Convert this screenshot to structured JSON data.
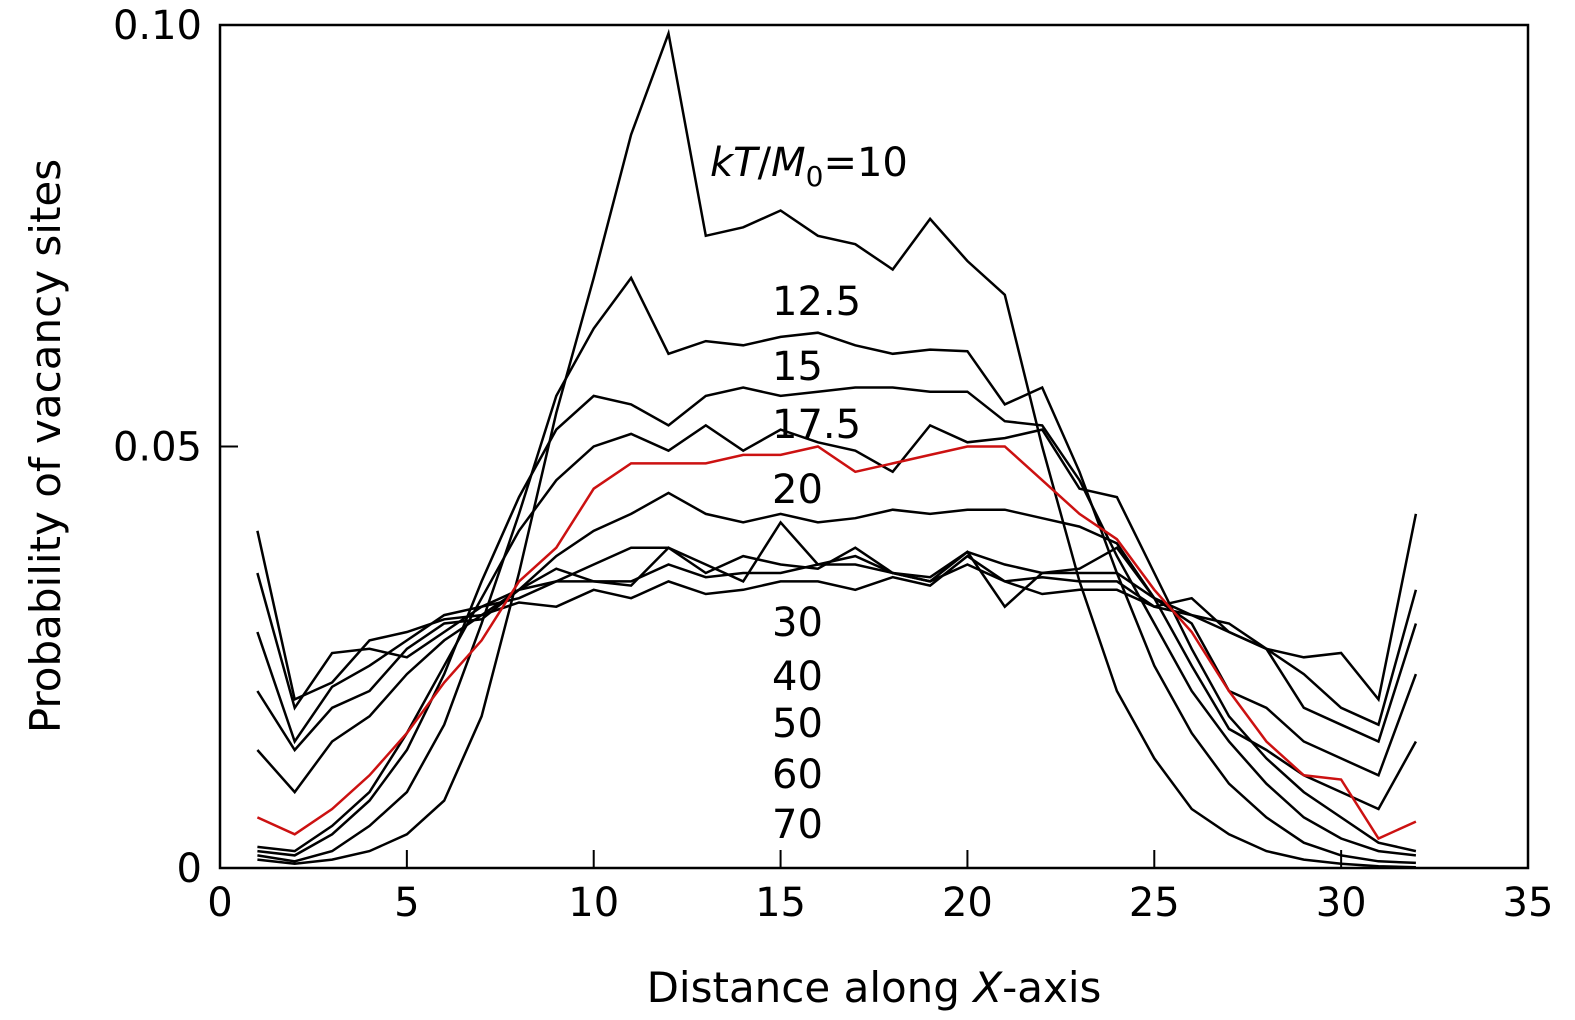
{
  "chart_data": {
    "type": "line",
    "title": "",
    "xlabel_pre": "Distance along ",
    "xlabel_var": "X",
    "xlabel_post": "-axis",
    "ylabel": "Probability of vacancy sites",
    "xlim": [
      0,
      35
    ],
    "ylim": [
      0,
      0.1
    ],
    "x_ticks": [
      0,
      5,
      10,
      15,
      20,
      25,
      30,
      35
    ],
    "y_ticks": [
      0,
      0.05,
      0.1
    ],
    "x_tick_labels": [
      "0",
      "5",
      "10",
      "15",
      "20",
      "25",
      "30",
      "35"
    ],
    "y_tick_labels": [
      "0",
      "0.05",
      "0.10"
    ],
    "grid": false,
    "x": [
      1,
      2,
      3,
      4,
      5,
      6,
      7,
      8,
      9,
      10,
      11,
      12,
      13,
      14,
      15,
      16,
      17,
      18,
      19,
      20,
      21,
      22,
      23,
      24,
      25,
      26,
      27,
      28,
      29,
      30,
      31,
      32
    ],
    "annotation_colors": {
      "default": "#000000",
      "highlight": "#cc1111"
    },
    "annotations": {
      "kt_prefix_k": "k",
      "kt_prefix_T": "T",
      "kt_slash": "/",
      "kt_M": "M",
      "kt_sub": "0",
      "kt_value": "=10",
      "a12": "12.5",
      "a15": "15",
      "a175": "17.5",
      "a20": "20",
      "a30": "30",
      "a40": "40",
      "a50": "50",
      "a60": "60",
      "a70": "70"
    },
    "series": [
      {
        "name": "10",
        "color": "#000000",
        "values": [
          0.001,
          0.0005,
          0.001,
          0.002,
          0.004,
          0.008,
          0.018,
          0.035,
          0.054,
          0.07,
          0.087,
          0.099,
          0.075,
          0.076,
          0.078,
          0.075,
          0.074,
          0.071,
          0.077,
          0.072,
          0.068,
          0.05,
          0.034,
          0.021,
          0.013,
          0.007,
          0.004,
          0.002,
          0.001,
          0.0005,
          0.0002,
          0.0001
        ]
      },
      {
        "name": "12.5",
        "color": "#000000",
        "values": [
          0.0015,
          0.0008,
          0.002,
          0.005,
          0.009,
          0.017,
          0.029,
          0.042,
          0.056,
          0.064,
          0.07,
          0.061,
          0.0625,
          0.062,
          0.063,
          0.0635,
          0.062,
          0.061,
          0.0615,
          0.0613,
          0.055,
          0.057,
          0.047,
          0.035,
          0.024,
          0.016,
          0.01,
          0.006,
          0.003,
          0.0015,
          0.0008,
          0.0006
        ]
      },
      {
        "name": "15",
        "color": "#000000",
        "values": [
          0.002,
          0.0015,
          0.004,
          0.008,
          0.014,
          0.023,
          0.034,
          0.044,
          0.052,
          0.056,
          0.055,
          0.0525,
          0.056,
          0.057,
          0.056,
          0.0565,
          0.057,
          0.057,
          0.0565,
          0.0565,
          0.053,
          0.0525,
          0.046,
          0.037,
          0.029,
          0.021,
          0.015,
          0.01,
          0.006,
          0.0035,
          0.002,
          0.0015
        ]
      },
      {
        "name": "17.5",
        "color": "#000000",
        "values": [
          0.0025,
          0.002,
          0.005,
          0.009,
          0.016,
          0.024,
          0.032,
          0.04,
          0.046,
          0.05,
          0.0515,
          0.0495,
          0.0525,
          0.0495,
          0.052,
          0.0505,
          0.0495,
          0.047,
          0.0525,
          0.0505,
          0.051,
          0.052,
          0.045,
          0.044,
          0.035,
          0.026,
          0.018,
          0.013,
          0.009,
          0.006,
          0.003,
          0.002
        ]
      },
      {
        "name": "20",
        "color": "#cc1111",
        "values": [
          0.006,
          0.004,
          0.007,
          0.011,
          0.016,
          0.022,
          0.027,
          0.034,
          0.038,
          0.045,
          0.048,
          0.048,
          0.048,
          0.049,
          0.049,
          0.05,
          0.047,
          0.048,
          0.049,
          0.05,
          0.05,
          0.046,
          0.042,
          0.039,
          0.033,
          0.028,
          0.021,
          0.015,
          0.011,
          0.0105,
          0.0035,
          0.0055
        ]
      },
      {
        "name": "30",
        "color": "#000000",
        "values": [
          0.014,
          0.009,
          0.015,
          0.018,
          0.023,
          0.027,
          0.03,
          0.033,
          0.037,
          0.04,
          0.042,
          0.0445,
          0.042,
          0.041,
          0.042,
          0.041,
          0.0415,
          0.0425,
          0.042,
          0.0425,
          0.0425,
          0.0415,
          0.0405,
          0.0385,
          0.032,
          0.024,
          0.0165,
          0.014,
          0.011,
          0.009,
          0.007,
          0.015
        ]
      },
      {
        "name": "40",
        "color": "#000000",
        "values": [
          0.021,
          0.014,
          0.019,
          0.021,
          0.026,
          0.029,
          0.0295,
          0.033,
          0.034,
          0.036,
          0.038,
          0.038,
          0.036,
          0.034,
          0.041,
          0.036,
          0.037,
          0.035,
          0.034,
          0.0375,
          0.036,
          0.035,
          0.035,
          0.035,
          0.032,
          0.029,
          0.021,
          0.019,
          0.015,
          0.013,
          0.011,
          0.023
        ]
      },
      {
        "name": "50",
        "color": "#000000",
        "values": [
          0.028,
          0.015,
          0.0215,
          0.024,
          0.027,
          0.03,
          0.031,
          0.032,
          0.034,
          0.034,
          0.0335,
          0.038,
          0.035,
          0.037,
          0.036,
          0.0355,
          0.038,
          0.035,
          0.034,
          0.036,
          0.034,
          0.0345,
          0.034,
          0.034,
          0.031,
          0.03,
          0.029,
          0.026,
          0.019,
          0.017,
          0.015,
          0.029
        ]
      },
      {
        "name": "60",
        "color": "#000000",
        "values": [
          0.035,
          0.019,
          0.0255,
          0.026,
          0.025,
          0.028,
          0.031,
          0.033,
          0.0355,
          0.034,
          0.034,
          0.036,
          0.0345,
          0.035,
          0.035,
          0.036,
          0.036,
          0.035,
          0.0345,
          0.0375,
          0.031,
          0.035,
          0.0355,
          0.038,
          0.032,
          0.03,
          0.028,
          0.026,
          0.023,
          0.019,
          0.017,
          0.033
        ]
      },
      {
        "name": "70",
        "color": "#000000",
        "values": [
          0.04,
          0.02,
          0.022,
          0.027,
          0.028,
          0.0295,
          0.03,
          0.0315,
          0.031,
          0.033,
          0.032,
          0.034,
          0.0325,
          0.033,
          0.034,
          0.034,
          0.033,
          0.0345,
          0.0335,
          0.037,
          0.034,
          0.0325,
          0.033,
          0.033,
          0.031,
          0.032,
          0.028,
          0.026,
          0.025,
          0.0255,
          0.02,
          0.042
        ]
      }
    ]
  }
}
